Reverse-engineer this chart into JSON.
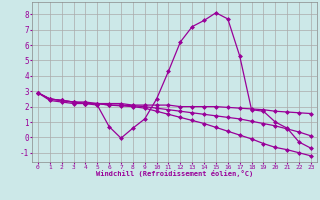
{
  "xlabel": "Windchill (Refroidissement éolien,°C)",
  "background_color": "#cce8e8",
  "grid_color": "#aaaaaa",
  "line_color": "#990099",
  "xmin": -0.5,
  "xmax": 23.5,
  "ymin": -1.6,
  "ymax": 8.8,
  "yticks": [
    -1,
    0,
    1,
    2,
    3,
    4,
    5,
    6,
    7,
    8
  ],
  "xticks": [
    0,
    1,
    2,
    3,
    4,
    5,
    6,
    7,
    8,
    9,
    10,
    11,
    12,
    13,
    14,
    15,
    16,
    17,
    18,
    19,
    20,
    21,
    22,
    23
  ],
  "curve1_y": [
    2.9,
    2.4,
    2.3,
    2.2,
    2.2,
    2.1,
    0.7,
    -0.05,
    0.6,
    1.2,
    2.5,
    4.3,
    6.2,
    7.2,
    7.6,
    8.1,
    7.7,
    5.3,
    1.8,
    1.7,
    1.0,
    0.6,
    -0.3,
    -0.7
  ],
  "curve2_y": [
    2.9,
    2.5,
    2.4,
    2.3,
    2.3,
    2.2,
    2.2,
    2.2,
    2.1,
    2.1,
    2.1,
    2.1,
    2.0,
    2.0,
    2.0,
    2.0,
    1.95,
    1.9,
    1.85,
    1.8,
    1.7,
    1.65,
    1.6,
    1.55
  ],
  "curve3_y": [
    2.9,
    2.5,
    2.4,
    2.3,
    2.2,
    2.2,
    2.1,
    2.1,
    2.05,
    2.0,
    1.9,
    1.8,
    1.7,
    1.6,
    1.5,
    1.4,
    1.3,
    1.2,
    1.05,
    0.9,
    0.75,
    0.55,
    0.35,
    0.1
  ],
  "curve4_y": [
    2.9,
    2.5,
    2.4,
    2.3,
    2.2,
    2.2,
    2.1,
    2.05,
    2.0,
    1.9,
    1.7,
    1.5,
    1.3,
    1.1,
    0.9,
    0.65,
    0.4,
    0.15,
    -0.1,
    -0.4,
    -0.65,
    -0.8,
    -1.0,
    -1.2
  ]
}
